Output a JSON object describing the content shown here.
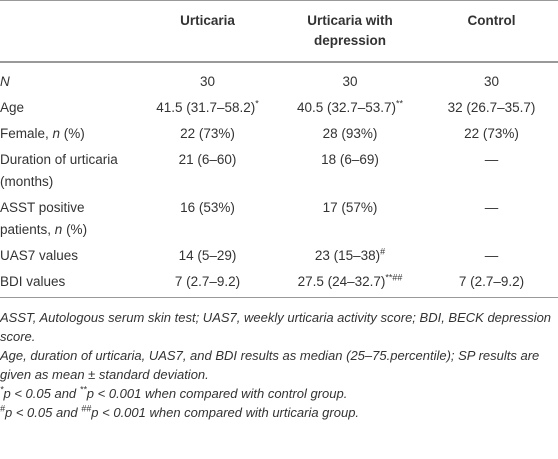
{
  "table": {
    "columns": [
      "Urticaria",
      "Urticaria with depression",
      "Control"
    ],
    "rows": [
      {
        "label": [
          {
            "italic": "N"
          }
        ],
        "cells": [
          [
            {
              "text": "30"
            }
          ],
          [
            {
              "text": "30"
            }
          ],
          [
            {
              "text": "30"
            }
          ]
        ]
      },
      {
        "label": [
          {
            "text": "Age"
          }
        ],
        "cells": [
          [
            {
              "text": "41.5 (31.7–58.2)"
            },
            {
              "sup": "*"
            }
          ],
          [
            {
              "text": "40.5 (32.7–53.7)"
            },
            {
              "sup": "**"
            }
          ],
          [
            {
              "text": "32 (26.7–35.7)"
            }
          ]
        ]
      },
      {
        "label": [
          {
            "text": "Female, "
          },
          {
            "italic": "n"
          },
          {
            "text": " (%)"
          }
        ],
        "cells": [
          [
            {
              "text": "22 (73%)"
            }
          ],
          [
            {
              "text": "28 (93%)"
            }
          ],
          [
            {
              "text": "22 (73%)"
            }
          ]
        ]
      },
      {
        "label": [
          {
            "text": "Duration of urticaria (months)"
          }
        ],
        "cells": [
          [
            {
              "text": "21 (6–60)"
            }
          ],
          [
            {
              "text": "18 (6–69)"
            }
          ],
          [
            {
              "text": "—"
            }
          ]
        ]
      },
      {
        "label": [
          {
            "text": "ASST positive patients, "
          },
          {
            "italic": "n"
          },
          {
            "text": " (%)"
          }
        ],
        "cells": [
          [
            {
              "text": "16 (53%)"
            }
          ],
          [
            {
              "text": "17 (57%)"
            }
          ],
          [
            {
              "text": "—"
            }
          ]
        ]
      },
      {
        "label": [
          {
            "text": "UAS7 values"
          }
        ],
        "cells": [
          [
            {
              "text": "14 (5–29)"
            }
          ],
          [
            {
              "text": "23 (15–38)"
            },
            {
              "sup": "#"
            }
          ],
          [
            {
              "text": "—"
            }
          ]
        ]
      },
      {
        "label": [
          {
            "text": "BDI values"
          }
        ],
        "cells": [
          [
            {
              "text": "7 (2.7–9.2)"
            }
          ],
          [
            {
              "text": "27.5 (24–32.7)"
            },
            {
              "sup": "**##"
            }
          ],
          [
            {
              "text": "7 (2.7–9.2)"
            }
          ]
        ]
      }
    ]
  },
  "footnotes": [
    [
      {
        "text": "ASST, Autologous serum skin test; UAS7, weekly urticaria activity score; BDI, BECK depression score."
      }
    ],
    [
      {
        "text": "Age, duration of urticaria, UAS7, and BDI results as median (25–75.percentile); SP results are given as mean ± standard deviation."
      }
    ],
    [
      {
        "sup": "*"
      },
      {
        "text": "p < 0.05 and "
      },
      {
        "sup": "**"
      },
      {
        "text": "p < 0.001 when compared with control group."
      }
    ],
    [
      {
        "sup": "#"
      },
      {
        "text": "p < 0.05 and "
      },
      {
        "sup": "##"
      },
      {
        "text": "p < 0.001 when compared with urticaria group."
      }
    ]
  ]
}
